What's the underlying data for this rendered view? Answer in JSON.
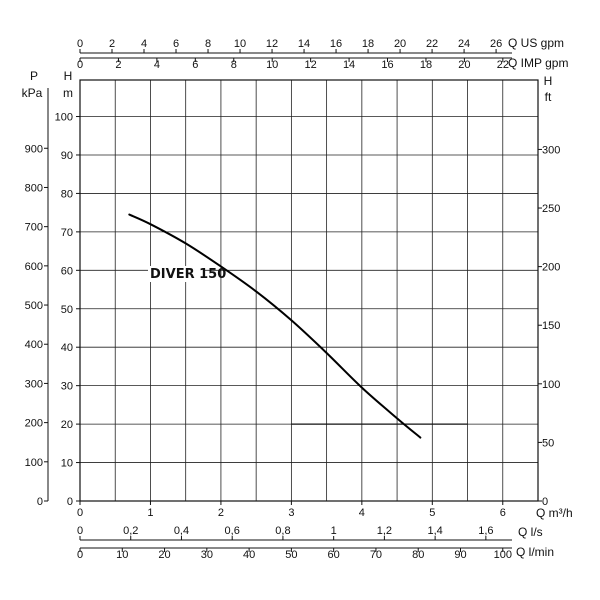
{
  "chart_data": {
    "type": "line",
    "title": "",
    "series": [
      {
        "name": "DIVER 150",
        "x": [
          0.7,
          1.0,
          1.5,
          2.0,
          2.5,
          3.0,
          3.5,
          4.0,
          4.5,
          4.83
        ],
        "y": [
          74.5,
          72.0,
          67.0,
          61.0,
          54.5,
          47.0,
          38.5,
          29.5,
          21.5,
          16.5
        ]
      }
    ],
    "reference_line": {
      "y": 20,
      "x_range": [
        3.0,
        5.5
      ]
    },
    "axes": {
      "bottom_primary": {
        "unit": "Q m³/h",
        "range": [
          0,
          6
        ],
        "ticks": [
          "0",
          "1",
          "2",
          "3",
          "4",
          "5",
          "6"
        ]
      },
      "bottom_ls": {
        "unit": "Q l/s",
        "ticks": [
          "0",
          "0,2",
          "0,4",
          "0,6",
          "0,8",
          "1",
          "1,2",
          "1,4",
          "1,6"
        ]
      },
      "bottom_lmin": {
        "unit": "Q l/min",
        "ticks": [
          "0",
          "10",
          "20",
          "30",
          "40",
          "50",
          "60",
          "70",
          "80",
          "90",
          "100"
        ]
      },
      "top_us": {
        "unit": "Q US gpm",
        "ticks": [
          "0",
          "2",
          "4",
          "6",
          "8",
          "10",
          "12",
          "14",
          "16",
          "18",
          "20",
          "22",
          "24",
          "26"
        ]
      },
      "top_imp": {
        "unit": "Q IMP gpm",
        "ticks": [
          "0",
          "2",
          "4",
          "6",
          "8",
          "10",
          "12",
          "14",
          "16",
          "18",
          "20",
          "22"
        ]
      },
      "left_m": {
        "unit_top": "H",
        "unit_bottom": "m",
        "range": [
          0,
          100
        ],
        "ticks": [
          "0",
          "10",
          "20",
          "30",
          "40",
          "50",
          "60",
          "70",
          "80",
          "90",
          "100"
        ]
      },
      "left_kpa": {
        "unit_top": "P",
        "unit_bottom": "kPa",
        "ticks": [
          "0",
          "100",
          "200",
          "300",
          "400",
          "500",
          "600",
          "700",
          "800",
          "900"
        ]
      },
      "right_ft": {
        "unit_top": "H",
        "unit_bottom": "ft",
        "ticks": [
          "0",
          "50",
          "100",
          "150",
          "200",
          "250",
          "300"
        ]
      }
    },
    "grid": true
  }
}
